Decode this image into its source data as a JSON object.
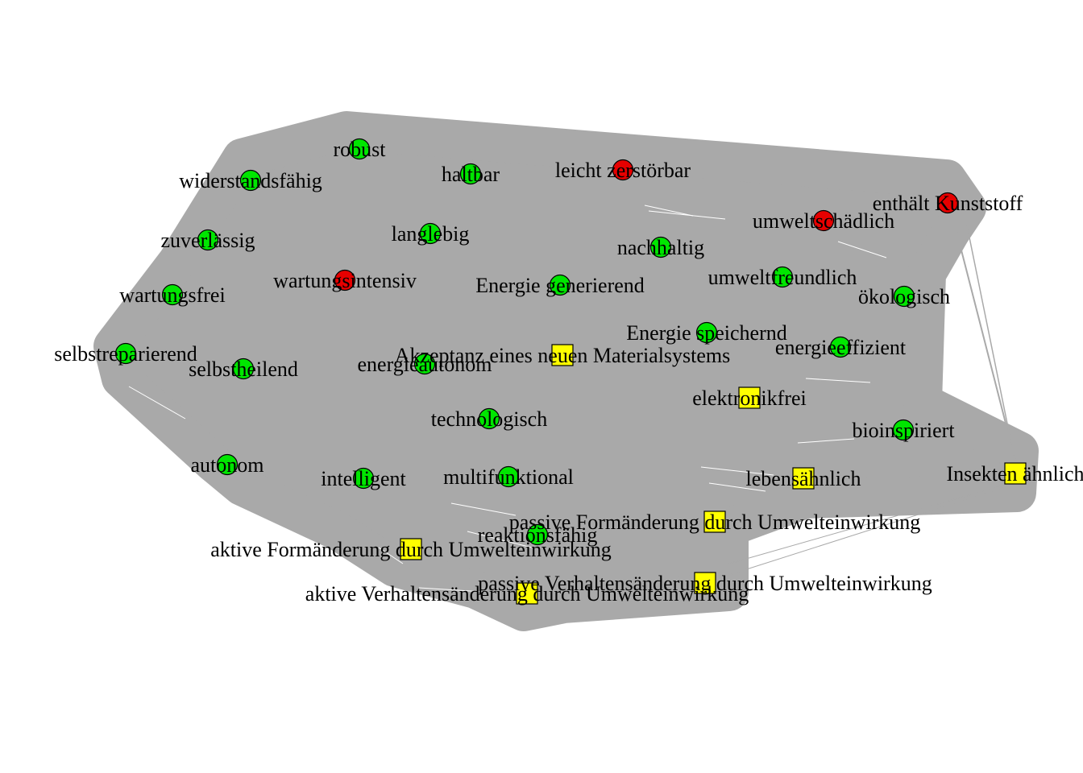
{
  "colors": {
    "edge": "#a9a9a9",
    "positive": "#00e600",
    "negative": "#e60000",
    "concept": "#ffff00",
    "outline": "#000000"
  },
  "nodes": [
    {
      "id": "robust",
      "label": "robust",
      "shape": "circle",
      "kind": "positive"
    },
    {
      "id": "widerstandsfaehig",
      "label": "widerstandsfähig",
      "shape": "circle",
      "kind": "positive"
    },
    {
      "id": "haltbar",
      "label": "haltbar",
      "shape": "circle",
      "kind": "positive"
    },
    {
      "id": "leicht-zerstoerbar",
      "label": "leicht zerstörbar",
      "shape": "circle",
      "kind": "negative"
    },
    {
      "id": "enthaelt-kunststoff",
      "label": "enthält Kunststoff",
      "shape": "circle",
      "kind": "negative"
    },
    {
      "id": "umweltschaedlich",
      "label": "umweltschädlich",
      "shape": "circle",
      "kind": "negative"
    },
    {
      "id": "zuverlaessig",
      "label": "zuverlässig",
      "shape": "circle",
      "kind": "positive"
    },
    {
      "id": "langlebig",
      "label": "langlebig",
      "shape": "circle",
      "kind": "positive"
    },
    {
      "id": "nachhaltig",
      "label": "nachhaltig",
      "shape": "circle",
      "kind": "positive"
    },
    {
      "id": "wartungsintensiv",
      "label": "wartungsintensiv",
      "shape": "circle",
      "kind": "negative"
    },
    {
      "id": "wartungsfrei",
      "label": "wartungsfrei",
      "shape": "circle",
      "kind": "positive"
    },
    {
      "id": "energie-generierend",
      "label": "Energie generierend",
      "shape": "circle",
      "kind": "positive"
    },
    {
      "id": "umweltfreundlich",
      "label": "umweltfreundlich",
      "shape": "circle",
      "kind": "positive"
    },
    {
      "id": "oekologisch",
      "label": "ökologisch",
      "shape": "circle",
      "kind": "positive"
    },
    {
      "id": "energie-speichernd",
      "label": "Energie speichernd",
      "shape": "circle",
      "kind": "positive"
    },
    {
      "id": "selbstreparierend",
      "label": "selbstreparierend",
      "shape": "circle",
      "kind": "positive"
    },
    {
      "id": "akzeptanz",
      "label": "Akzeptanz eines neuen Materialsystems",
      "shape": "square",
      "kind": "concept"
    },
    {
      "id": "energieeffizient",
      "label": "energieeffizient",
      "shape": "circle",
      "kind": "positive"
    },
    {
      "id": "selbstheilend",
      "label": "selbstheilend",
      "shape": "circle",
      "kind": "positive"
    },
    {
      "id": "energieautonom",
      "label": "energieautonom",
      "shape": "circle",
      "kind": "positive"
    },
    {
      "id": "elektronikfrei",
      "label": "elektronikfrei",
      "shape": "square",
      "kind": "concept"
    },
    {
      "id": "technologisch",
      "label": "technologisch",
      "shape": "circle",
      "kind": "positive"
    },
    {
      "id": "bioinspiriert",
      "label": "bioinspiriert",
      "shape": "circle",
      "kind": "positive"
    },
    {
      "id": "autonom",
      "label": "autonom",
      "shape": "circle",
      "kind": "positive"
    },
    {
      "id": "intelligent",
      "label": "intelligent",
      "shape": "circle",
      "kind": "positive"
    },
    {
      "id": "multifunktional",
      "label": "multifunktional",
      "shape": "circle",
      "kind": "positive"
    },
    {
      "id": "lebensaehnlich",
      "label": "lebensähnlich",
      "shape": "square",
      "kind": "concept"
    },
    {
      "id": "insekten-aehnlich",
      "label": "Insekten ähnlich",
      "shape": "square",
      "kind": "concept"
    },
    {
      "id": "passive-formaenderung",
      "label": "passive Formänderung durch Umwelteinwirkung",
      "shape": "square",
      "kind": "concept"
    },
    {
      "id": "reaktionsfaehig",
      "label": "reaktionsfähig",
      "shape": "circle",
      "kind": "positive"
    },
    {
      "id": "aktive-formaenderung",
      "label": "aktive Formänderung durch Umwelteinwirkung",
      "shape": "square",
      "kind": "concept"
    },
    {
      "id": "passive-verhaltensaenderung",
      "label": "passive Verhaltensänderung durch Umwelteinwirkung",
      "shape": "square",
      "kind": "concept"
    },
    {
      "id": "aktive-verhaltensaenderung",
      "label": "aktive Verhaltensänderung durch Umwelteinwirkung",
      "shape": "square",
      "kind": "concept"
    }
  ]
}
